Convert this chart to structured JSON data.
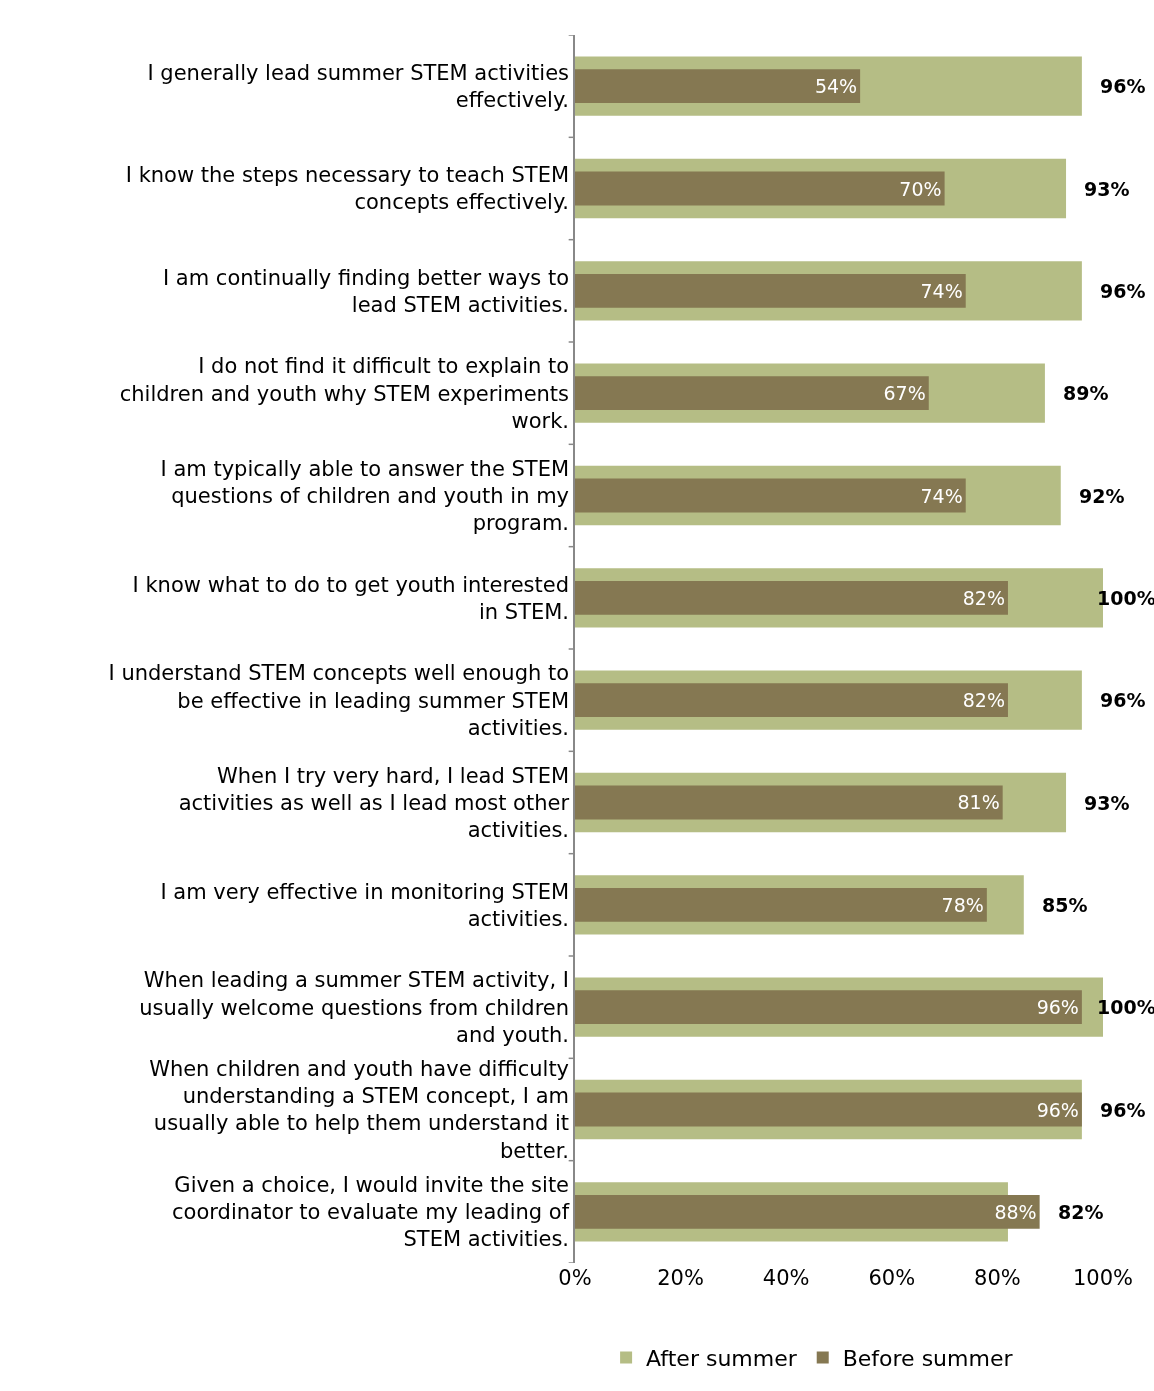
{
  "chart_data": {
    "type": "bar",
    "orientation": "horizontal",
    "categories": [
      "I generally lead summer STEM activities effectively.",
      "I know the steps necessary to teach STEM concepts effectively.",
      "I am continually finding better ways to lead STEM activities.",
      "I do not find it difficult to explain to children and youth why STEM experiments work.",
      "I am typically able to answer the STEM questions of children and youth in my program.",
      "I know what to do to get youth interested in STEM.",
      "I understand STEM concepts well enough to be effective in leading summer STEM activities.",
      "When I try very hard, I lead STEM activities as well as I lead most other activities.",
      "I am very effective in monitoring STEM activities.",
      "When leading a summer STEM activity, I usually welcome questions from children and youth.",
      "When children and youth have difficulty understanding a STEM concept, I am usually able to help them understand it better.",
      "Given a choice, I would invite the site coordinator to evaluate my leading of STEM activities."
    ],
    "series": [
      {
        "name": "After summer",
        "color": "#b5bd85",
        "values": [
          96,
          93,
          96,
          89,
          92,
          100,
          96,
          93,
          85,
          100,
          96,
          82
        ],
        "value_labels": [
          "96%",
          "93%",
          "96%",
          "89%",
          "92%",
          "100%",
          "96%",
          "93%",
          "85%",
          "100%",
          "96%",
          "82%"
        ]
      },
      {
        "name": "Before summer",
        "color": "#857852",
        "values": [
          54,
          70,
          74,
          67,
          74,
          82,
          82,
          81,
          78,
          96,
          96,
          88
        ],
        "value_labels": [
          "54%",
          "70%",
          "74%",
          "67%",
          "74%",
          "82%",
          "82%",
          "81%",
          "78%",
          "96%",
          "96%",
          "88%"
        ]
      }
    ],
    "xlim": [
      0,
      100
    ],
    "xticks": [
      {
        "value": 0,
        "label": "0%"
      },
      {
        "value": 20,
        "label": "20%"
      },
      {
        "value": 40,
        "label": "40%"
      },
      {
        "value": 60,
        "label": "60%"
      },
      {
        "value": 80,
        "label": "80%"
      },
      {
        "value": 100,
        "label": "100%"
      }
    ],
    "grid": false,
    "legend": "bottom"
  }
}
